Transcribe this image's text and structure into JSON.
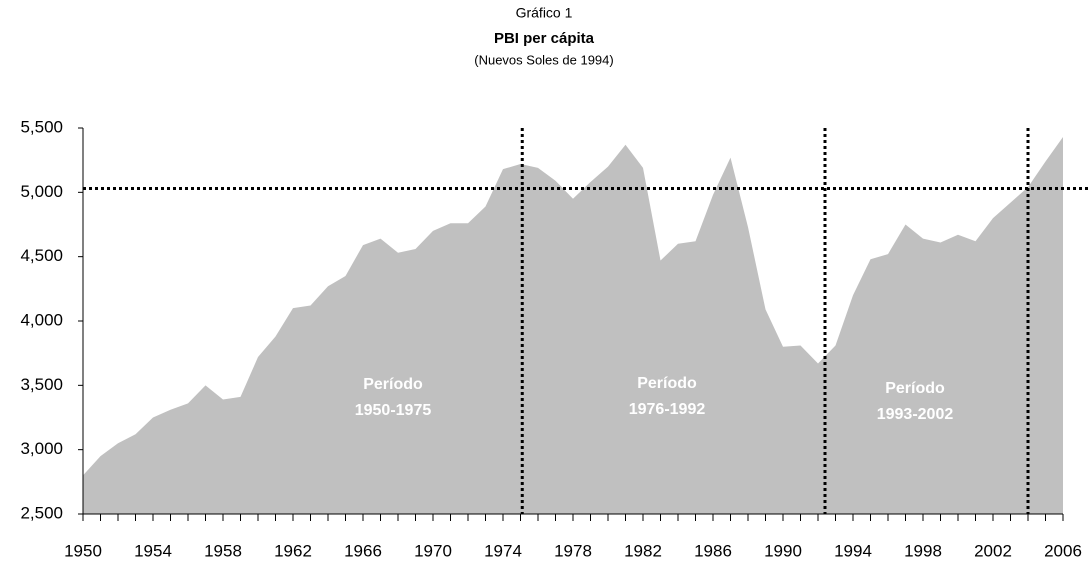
{
  "chart_data": {
    "type": "area",
    "title": "PBI per cápita",
    "supertitle": "Gráfico 1",
    "subtitle": "(Nuevos Soles de 1994)",
    "x": [
      1950,
      1951,
      1952,
      1953,
      1954,
      1955,
      1956,
      1957,
      1958,
      1959,
      1960,
      1961,
      1962,
      1963,
      1964,
      1965,
      1966,
      1967,
      1968,
      1969,
      1970,
      1971,
      1972,
      1973,
      1974,
      1975,
      1976,
      1977,
      1978,
      1979,
      1980,
      1981,
      1982,
      1983,
      1984,
      1985,
      1986,
      1987,
      1988,
      1989,
      1990,
      1991,
      1992,
      1993,
      1994,
      1995,
      1996,
      1997,
      1998,
      1999,
      2000,
      2001,
      2002,
      2003,
      2004,
      2005,
      2006
    ],
    "values": [
      2800,
      2950,
      3050,
      3120,
      3250,
      3310,
      3360,
      3500,
      3390,
      3410,
      3720,
      3880,
      4100,
      4120,
      4270,
      4350,
      4590,
      4640,
      4530,
      4560,
      4700,
      4760,
      4760,
      4890,
      5180,
      5220,
      5190,
      5090,
      4950,
      5080,
      5200,
      5370,
      5190,
      4470,
      4600,
      4620,
      4980,
      5270,
      4730,
      4090,
      3800,
      3810,
      3670,
      3810,
      4200,
      4480,
      4520,
      4750,
      4640,
      4610,
      4670,
      4620,
      4800,
      4920,
      5040,
      5240,
      5430
    ],
    "color": "#c0c0c0",
    "xlim": [
      1950,
      2006
    ],
    "xticks": [
      1950,
      1954,
      1958,
      1962,
      1966,
      1970,
      1974,
      1978,
      1982,
      1986,
      1990,
      1994,
      1998,
      2002,
      2006
    ],
    "ylim": [
      2500,
      5500
    ],
    "yticks": [
      {
        "value": 2500,
        "label": "2,500"
      },
      {
        "value": 3000,
        "label": "3,000"
      },
      {
        "value": 3500,
        "label": "3,500"
      },
      {
        "value": 4000,
        "label": "4,000"
      },
      {
        "value": 4500,
        "label": "4,500"
      },
      {
        "value": 5000,
        "label": "5,000"
      },
      {
        "value": 5500,
        "label": "5,500"
      }
    ],
    "reference_lines": {
      "x": [
        1975.1,
        1992.4,
        2004
      ],
      "y": 5030
    },
    "annotations": [
      [
        "Período",
        "1950-1975"
      ],
      [
        "Período",
        "1976-1992"
      ],
      [
        "Período",
        "1993-2002"
      ]
    ]
  }
}
